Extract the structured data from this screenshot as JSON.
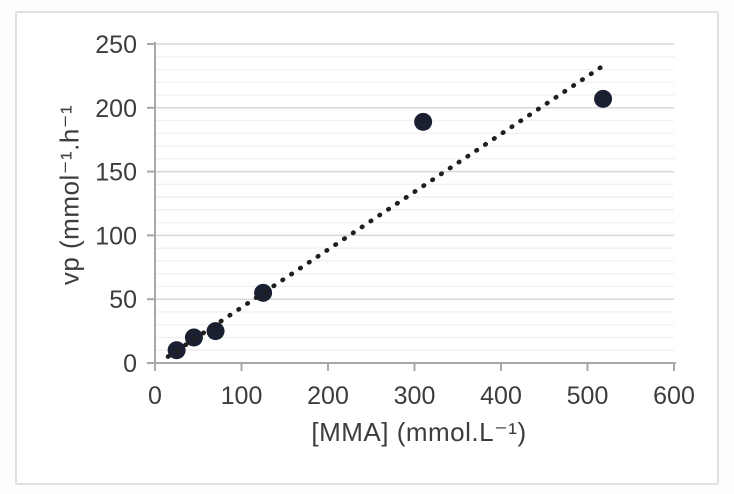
{
  "page": {
    "background": "#fcfcfc"
  },
  "figure": {
    "background": "#ffffff",
    "border_color": "#dfdfdf"
  },
  "chart_data": {
    "type": "scatter",
    "title": "",
    "xlabel": "[MMA] (mmol.L⁻¹)",
    "ylabel": "vp (mmol⁻¹.h⁻¹",
    "xlim": [
      0,
      600
    ],
    "ylim": [
      0,
      250
    ],
    "x_ticks": [
      0,
      100,
      200,
      300,
      400,
      500,
      600
    ],
    "y_ticks": [
      0,
      50,
      100,
      150,
      200,
      250
    ],
    "grid": "horizontal-only",
    "minor_grid_step": 10,
    "major_grid_step": 50,
    "legend": false,
    "series": [
      {
        "name": "measured-points",
        "type": "scatter",
        "marker": "circle",
        "color": "#1a2032",
        "points": [
          [
            25,
            10
          ],
          [
            45,
            20
          ],
          [
            70,
            25
          ],
          [
            125,
            55
          ],
          [
            310,
            189
          ],
          [
            518,
            207
          ]
        ]
      },
      {
        "name": "trendline",
        "type": "dotted-line",
        "color": "#1f1f1f",
        "points": [
          [
            15,
            5
          ],
          [
            516,
            232
          ]
        ]
      }
    ],
    "colors": {
      "axis": "#a8a8a8",
      "tick_label": "#3d3d3d",
      "grid_major": "#d8d8d8",
      "grid_minor": "#f1f1f1"
    }
  }
}
